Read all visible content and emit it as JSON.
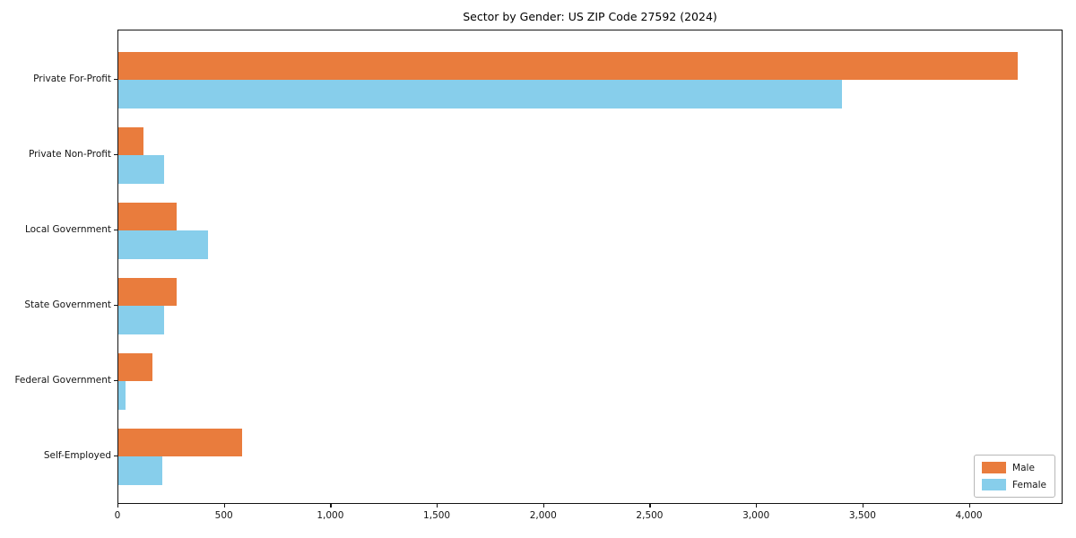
{
  "chart_data": {
    "type": "bar",
    "orientation": "horizontal",
    "title": "Sector by Gender: US ZIP Code 27592 (2024)",
    "categories": [
      "Private For-Profit",
      "Private Non-Profit",
      "Local Government",
      "State Government",
      "Federal Government",
      "Self-Employed"
    ],
    "series": [
      {
        "name": "Male",
        "color": "#e97c3d",
        "values": [
          4225,
          120,
          275,
          275,
          160,
          580
        ]
      },
      {
        "name": "Female",
        "color": "#87ceeb",
        "values": [
          3400,
          215,
          420,
          215,
          35,
          205
        ]
      }
    ],
    "xlabel": "",
    "ylabel": "",
    "xlim": [
      0,
      4440
    ],
    "xticks": {
      "values": [
        0,
        500,
        1000,
        1500,
        2000,
        2500,
        3000,
        3500,
        4000
      ],
      "labels": [
        "0",
        "500",
        "1,000",
        "1,500",
        "2,000",
        "2,500",
        "3,000",
        "3,500",
        "4,000"
      ]
    },
    "grid": false,
    "legend_position": "lower right"
  }
}
